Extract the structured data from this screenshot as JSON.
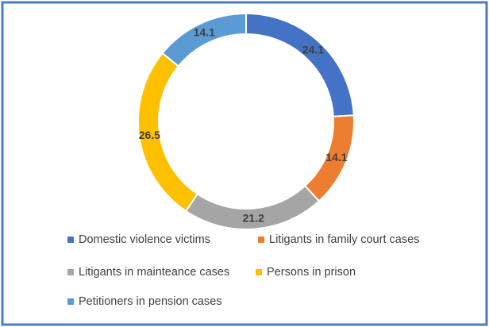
{
  "chart_data": {
    "type": "pie",
    "donut": true,
    "categories": [
      "Domestic violence victims",
      "Litigants in family court cases",
      "Litigants in mainteance cases",
      "Persons in prison",
      "Petitioners in pension cases"
    ],
    "values": [
      24.1,
      14.1,
      21.2,
      26.5,
      14.1
    ],
    "colors": [
      "#4472c4",
      "#ed7d31",
      "#a5a5a5",
      "#ffc000",
      "#5b9bd5"
    ],
    "legend": "bottom"
  }
}
